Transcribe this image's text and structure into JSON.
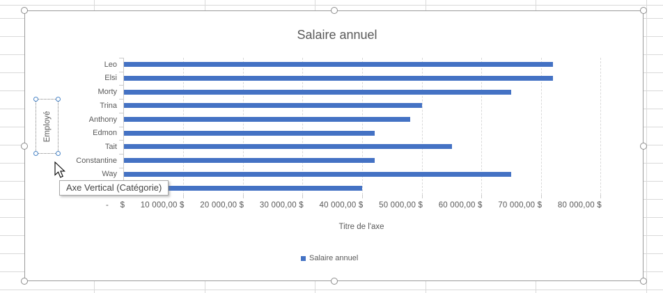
{
  "chart": {
    "title": "Salaire annuel",
    "x_axis_title": "Titre de l'axe",
    "y_axis_title": "Employé",
    "legend_label": "Salaire annuel"
  },
  "tooltip": {
    "text": "Axe Vertical (Catégorie)"
  },
  "selection": {
    "selected_element": "vertical-category-axis-title",
    "chart_selected": true
  },
  "colors": {
    "bar": "#4472C4",
    "axis_text": "#595959",
    "gridline": "#D9D9D9",
    "selection_handle_accent": "#4A86C8",
    "chart_border": "#9B9B9B"
  },
  "chart_data": {
    "type": "bar",
    "orientation": "horizontal",
    "title": "Salaire annuel",
    "categories": [
      "Leo",
      "Elsi",
      "Morty",
      "Trina",
      "Anthony",
      "Edmon",
      "Tait",
      "Constantine",
      "Way",
      ""
    ],
    "tenth_category_label_hidden_by_tooltip": true,
    "series": [
      {
        "name": "Salaire annuel",
        "values": [
          72000,
          72000,
          65000,
          50000,
          48000,
          42000,
          55000,
          42000,
          65000,
          40000
        ]
      }
    ],
    "xlabel": "Titre de l'axe",
    "ylabel": "Employé",
    "xlim": [
      0,
      80000
    ],
    "x_major_unit": 10000,
    "x_tick_labels": [
      "- $",
      "10 000,00 $",
      "20 000,00 $",
      "30 000,00 $",
      "40 000,00 $",
      "50 000,00 $",
      "60 000,00 $",
      "70 000,00 $",
      "80 000,00 $"
    ],
    "grid": true,
    "legend_position": "bottom",
    "bar_color": "#4472C4"
  }
}
